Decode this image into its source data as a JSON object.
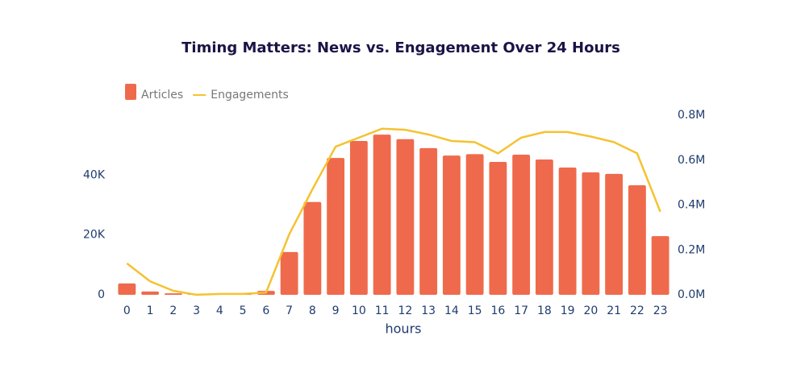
{
  "chart_data": {
    "type": "bar+line",
    "title": "Timing Matters: News vs. Engagement Over 24 Hours",
    "x_label": "hours",
    "categories": [
      "0",
      "1",
      "2",
      "3",
      "4",
      "5",
      "6",
      "7",
      "8",
      "9",
      "10",
      "11",
      "12",
      "13",
      "14",
      "15",
      "16",
      "17",
      "18",
      "19",
      "20",
      "21",
      "22",
      "23"
    ],
    "series": [
      {
        "name": "Articles",
        "type": "bar",
        "color": "#ef6a4c",
        "values": [
          3800,
          1100,
          500,
          300,
          300,
          300,
          1300,
          14300,
          31000,
          45700,
          51400,
          53500,
          52000,
          49000,
          46500,
          47000,
          44400,
          46800,
          45200,
          42500,
          40900,
          40400,
          36600,
          19600
        ]
      },
      {
        "name": "Engagements",
        "type": "line",
        "axis": "y2",
        "color": "#f5c230",
        "values": [
          140000,
          60000,
          18000,
          0,
          4000,
          4000,
          10000,
          270000,
          470000,
          660000,
          700000,
          740000,
          735000,
          714000,
          685000,
          680000,
          630000,
          700000,
          725000,
          725000,
          705000,
          680000,
          630000,
          370000
        ]
      }
    ],
    "ylim": [
      0,
      60000
    ],
    "yticks": [
      0,
      {
        "value": 20000,
        "label": "20K"
      },
      {
        "value": 40000,
        "label": "40K"
      }
    ],
    "y2lim": [
      0,
      800000
    ],
    "y2ticks": [
      {
        "value": 0,
        "label": "0.0M"
      },
      {
        "value": 200000,
        "label": "0.2M"
      },
      {
        "value": 400000,
        "label": "0.4M"
      },
      {
        "value": 600000,
        "label": "0.6M"
      },
      {
        "value": 800000,
        "label": "0.8M"
      }
    ]
  }
}
